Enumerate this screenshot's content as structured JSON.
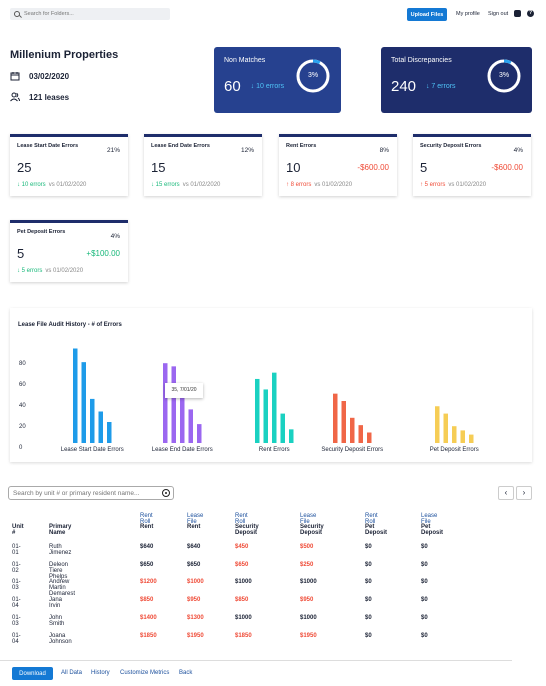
{
  "topbar": {
    "search_placeholder": "Search for Folders...",
    "upload_label": "Upload Files",
    "profile_label": "My profile",
    "signout_label": "Sign out",
    "help_glyph": "?"
  },
  "property": {
    "name": "Millenium Properties",
    "date": "03/02/2020",
    "leases": "121 leases"
  },
  "summary": [
    {
      "label": "Non Matches",
      "value": "60",
      "errors": "↓ 10 errors",
      "percent": "3%",
      "percent_value": 3,
      "bg": "#26418f"
    },
    {
      "label": "Total Discrepancies",
      "value": "240",
      "errors": "↓ 7 errors",
      "percent": "3%",
      "percent_value": 3,
      "bg": "#1e2d6b"
    }
  ],
  "metrics": [
    {
      "title": "Lease Start Date Errors",
      "pct": "21%",
      "value": "25",
      "delta": "",
      "errors": "↓ 10 errors",
      "vs": "vs 01/02/2020",
      "trend": "down"
    },
    {
      "title": "Lease End Date Errors",
      "pct": "12%",
      "value": "15",
      "delta": "",
      "errors": "↓ 15 errors",
      "vs": "vs 01/02/2020",
      "trend": "down"
    },
    {
      "title": "Rent Errors",
      "pct": "8%",
      "value": "10",
      "delta": "-$600.00",
      "errors": "↑ 8 errors",
      "vs": "vs 01/02/2020",
      "trend": "up"
    },
    {
      "title": "Security Deposit Errors",
      "pct": "4%",
      "value": "5",
      "delta": "-$600.00",
      "errors": "↑ 5 errors",
      "vs": "vs 01/02/2020",
      "trend": "up"
    },
    {
      "title": "Pet Deposit Errors",
      "pct": "4%",
      "value": "5",
      "delta": "+$100.00",
      "errors": "↓ 5 errors",
      "vs": "vs 01/02/2020",
      "trend": "down"
    }
  ],
  "chart_title": "Lease File Audit History - # of Errors",
  "tooltip": "35, 7/01/20",
  "chart_data": {
    "type": "bar",
    "title": "Lease File Audit History - # of Errors",
    "ylim": [
      0,
      100
    ],
    "yticks": [
      0,
      20,
      40,
      60,
      80
    ],
    "categories": [
      "Lease Start Date Errors",
      "Lease End Date Errors",
      "Rent Errors",
      "Security Deposit Errors",
      "Pet Deposit Errors"
    ],
    "colors": [
      "#1e9be9",
      "#9b67f0",
      "#1ad1c1",
      "#f06647",
      "#f6cd55"
    ],
    "groups": [
      [
        90,
        77,
        42,
        30,
        20
      ],
      [
        76,
        73,
        47,
        32,
        18
      ],
      [
        61,
        51,
        67,
        28,
        13
      ],
      [
        47,
        40,
        24,
        17,
        10
      ],
      [
        35,
        28,
        16,
        12,
        8
      ]
    ]
  },
  "table": {
    "search_placeholder": "Search by unit # or primary resident name...",
    "prev": "‹",
    "next": "›",
    "col_top": [
      "",
      "",
      "Rent Roll",
      "Lease File",
      "Rent Roll",
      "Lease File",
      "Rent Roll",
      "Lease File"
    ],
    "col_head": [
      "Unit #",
      "Primary Name",
      "Rent",
      "Rent",
      "Security Deposit",
      "Security Deposit",
      "Pet Deposit",
      "Pet Deposit"
    ],
    "rows": [
      [
        "01-01",
        "Ruth Jimenez",
        "$640",
        "$640",
        "$450",
        "$500",
        "$0",
        "$0"
      ],
      [
        "01-02",
        "Deleon Tiere Phelps",
        "$650",
        "$650",
        "$650",
        "$250",
        "$0",
        "$0"
      ],
      [
        "01-03",
        "Andrew Martin Demarest",
        "$1200",
        "$1000",
        "$1000",
        "$1000",
        "$0",
        "$0"
      ],
      [
        "01-04",
        "Jana Irvin",
        "$850",
        "$950",
        "$850",
        "$950",
        "$0",
        "$0"
      ],
      [
        "01-03",
        "John Smith",
        "$1400",
        "$1300",
        "$1000",
        "$1000",
        "$0",
        "$0"
      ],
      [
        "01-04",
        "Joana Johnson",
        "$1850",
        "$1950",
        "$1850",
        "$1950",
        "$0",
        "$0"
      ]
    ],
    "red_cells": [
      [
        false,
        false,
        false,
        false,
        true,
        true,
        false,
        false
      ],
      [
        false,
        false,
        false,
        false,
        true,
        true,
        false,
        false
      ],
      [
        false,
        false,
        true,
        true,
        false,
        false,
        false,
        false
      ],
      [
        false,
        false,
        true,
        true,
        true,
        true,
        false,
        false
      ],
      [
        false,
        false,
        true,
        true,
        false,
        false,
        false,
        false
      ],
      [
        false,
        false,
        true,
        true,
        true,
        true,
        false,
        false
      ]
    ]
  },
  "footer": {
    "download": "Download",
    "links": [
      "All Data",
      "History",
      "Customize Metrics",
      "Back"
    ]
  }
}
